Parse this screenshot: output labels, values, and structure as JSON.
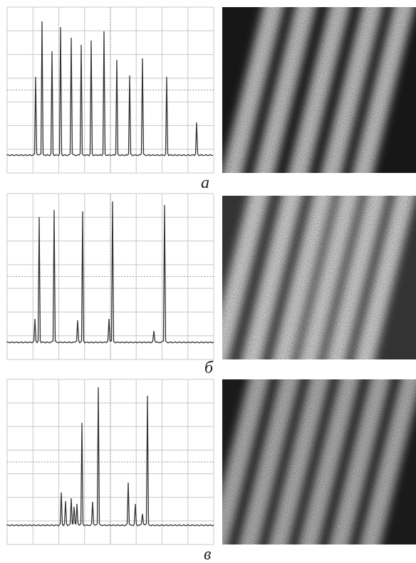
{
  "panels": [
    {
      "label": "а"
    },
    {
      "label": "б"
    },
    {
      "label": "в"
    }
  ]
}
